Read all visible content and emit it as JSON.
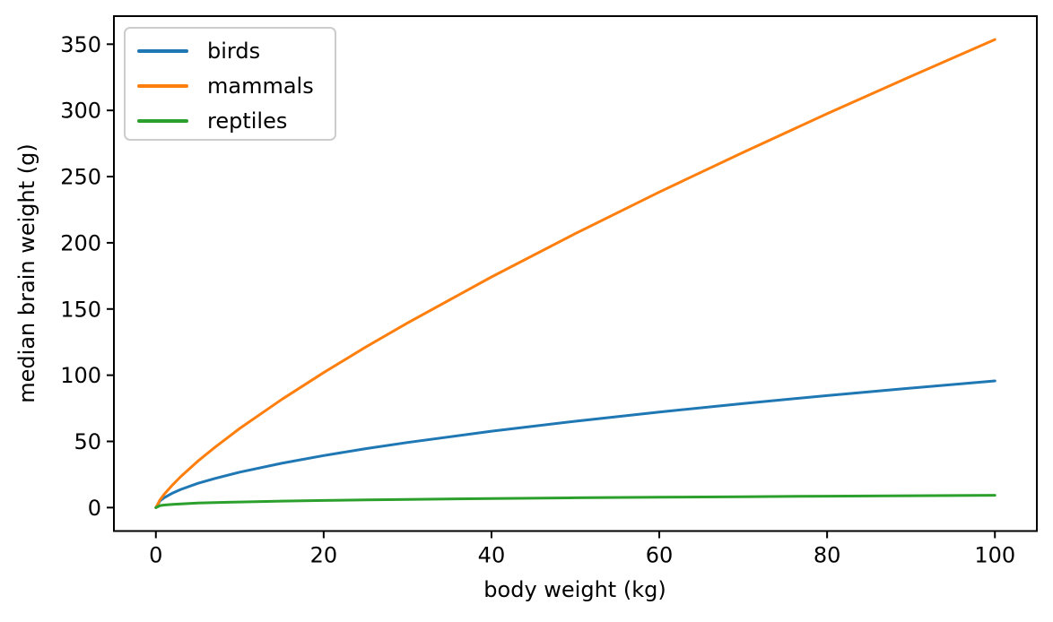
{
  "figure": {
    "background": "#ffffff",
    "spine_color": "#000000",
    "tick_color": "#000000",
    "text_color": "#000000",
    "legend_border_color": "#cccccc"
  },
  "chart_data": {
    "type": "line",
    "title": "",
    "xlabel": "body weight (kg)",
    "ylabel": "median brain weight (g)",
    "xlim": [
      -5,
      105
    ],
    "ylim": [
      -17.7,
      371.2
    ],
    "x_ticks": [
      0,
      20,
      40,
      60,
      80,
      100
    ],
    "y_ticks": [
      0,
      50,
      100,
      150,
      200,
      250,
      300,
      350
    ],
    "grid": false,
    "legend": {
      "position": "upper left",
      "entries": [
        "birds",
        "mammals",
        "reptiles"
      ]
    },
    "x": [
      0,
      0.5,
      1,
      2,
      3,
      5,
      7,
      10,
      15,
      20,
      25,
      30,
      40,
      50,
      60,
      70,
      80,
      90,
      100
    ],
    "series": [
      {
        "name": "birds",
        "color": "#1f77b4",
        "values": [
          0,
          5.1,
          7.5,
          11.0,
          13.8,
          18.3,
          22.0,
          26.8,
          33.5,
          39.3,
          44.5,
          49.2,
          57.7,
          65.2,
          72.2,
          78.6,
          84.6,
          90.3,
          95.7
        ]
      },
      {
        "name": "mammals",
        "color": "#ff7f0e",
        "values": [
          0,
          5.9,
          10.1,
          17.2,
          23.6,
          35.0,
          45.4,
          59.8,
          81.7,
          102.0,
          121.2,
          139.5,
          174.2,
          207.0,
          238.3,
          268.3,
          297.5,
          325.8,
          353.5
        ]
      },
      {
        "name": "reptiles",
        "color": "#2ca02c",
        "values": [
          0,
          1.5,
          1.9,
          2.5,
          2.8,
          3.4,
          3.8,
          4.2,
          4.9,
          5.4,
          5.8,
          6.2,
          6.8,
          7.4,
          7.8,
          8.2,
          8.6,
          9.0,
          9.3
        ]
      }
    ]
  }
}
